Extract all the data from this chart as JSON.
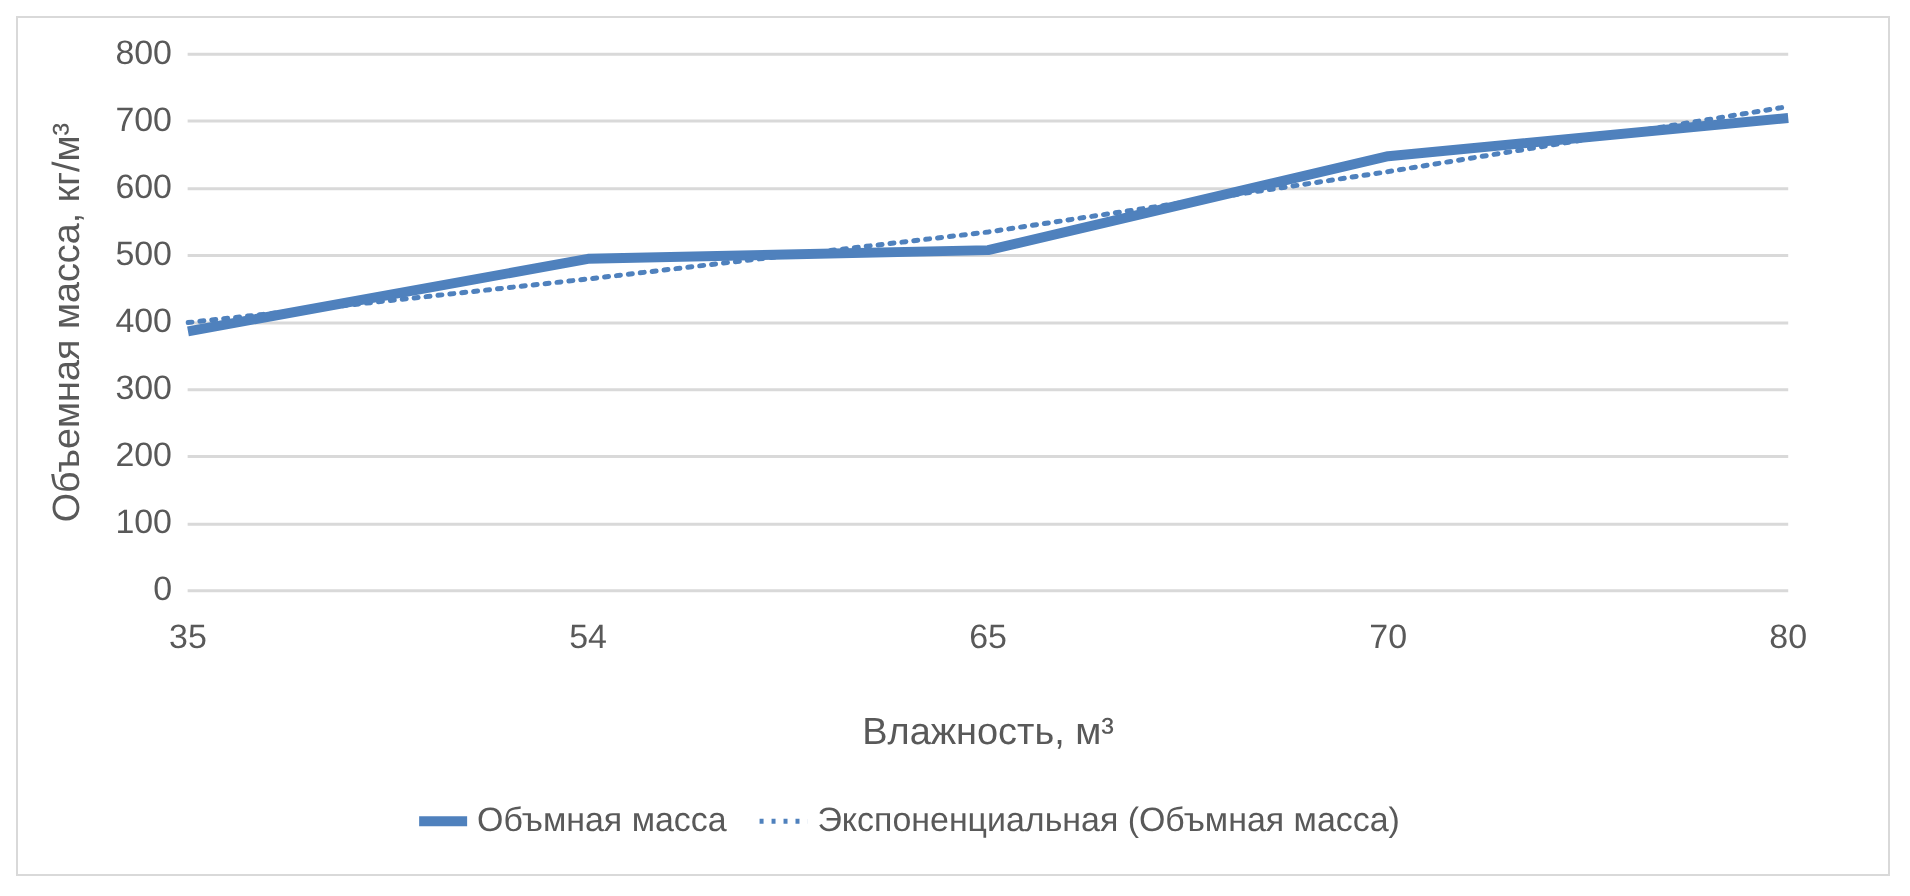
{
  "chart_data": {
    "type": "line",
    "xlabel": "Влажность, м³",
    "ylabel": "Объемная масса, кг/м³",
    "categories": [
      "35",
      "54",
      "65",
      "70",
      "80"
    ],
    "series": [
      {
        "name": "Объмная масса",
        "color": "#4f81bd",
        "values": [
          387,
          495,
          508,
          648,
          705
        ]
      },
      {
        "name": "Экспоненциальная (Объмная масса)",
        "color": "#4f81bd",
        "values": [
          400,
          465,
          535,
          625,
          722
        ],
        "line_style": "dotted"
      }
    ],
    "ylim": [
      0,
      800
    ],
    "yticks": [
      0,
      100,
      200,
      300,
      400,
      500,
      600,
      700,
      800
    ],
    "grid": "y",
    "legend": "bottom",
    "marker": "none"
  }
}
